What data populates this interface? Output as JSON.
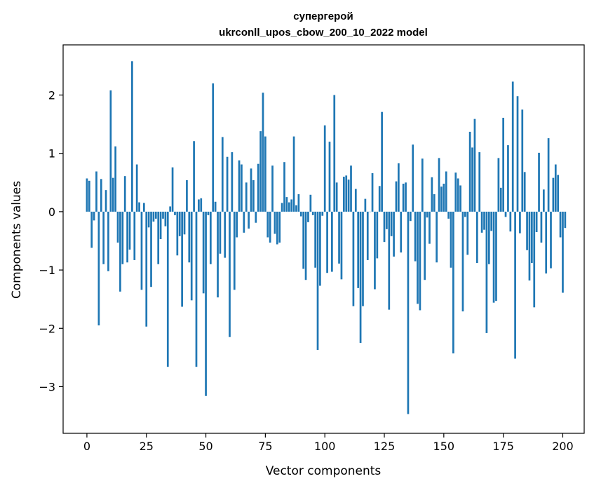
{
  "chart_data": {
    "type": "bar",
    "title_line1": "супергерой",
    "title_line2": "ukrconll_upos_cbow_200_10_2022 model",
    "xlabel": "Vector components",
    "ylabel": "Components values",
    "xlim": [
      -10,
      209
    ],
    "ylim": [
      -3.8,
      2.86
    ],
    "x_ticks": [
      0,
      25,
      50,
      75,
      100,
      125,
      150,
      175,
      200
    ],
    "x_tick_labels": [
      "0",
      "25",
      "50",
      "75",
      "100",
      "125",
      "150",
      "175",
      "200"
    ],
    "y_ticks": [
      2,
      1,
      0,
      -1,
      -2,
      -3
    ],
    "y_tick_labels": [
      "2",
      "1",
      "0",
      "−1",
      "−2",
      "−3"
    ],
    "bar_color": "#1f77b4",
    "values": [
      0.57,
      0.53,
      -0.62,
      -0.15,
      0.69,
      -1.95,
      0.56,
      -0.9,
      0.37,
      -1.02,
      2.08,
      0.58,
      1.12,
      -0.53,
      -1.37,
      -0.9,
      0.61,
      -0.87,
      -0.65,
      2.58,
      -0.83,
      0.81,
      0.16,
      -1.34,
      0.15,
      -1.97,
      -0.27,
      -1.29,
      -0.17,
      -0.12,
      -0.9,
      -0.47,
      -0.12,
      -0.25,
      -2.66,
      0.09,
      0.76,
      -0.06,
      -0.75,
      -0.42,
      -1.63,
      -0.39,
      0.54,
      -0.87,
      -1.52,
      1.21,
      -2.66,
      0.21,
      0.23,
      -1.4,
      -3.16,
      -0.06,
      -0.9,
      2.2,
      0.17,
      -1.47,
      -0.72,
      1.28,
      -0.79,
      0.94,
      -2.15,
      1.02,
      -1.34,
      -0.44,
      0.88,
      0.81,
      -0.36,
      0.5,
      -0.29,
      0.74,
      0.54,
      -0.19,
      0.82,
      1.38,
      2.04,
      1.29,
      -0.44,
      -0.53,
      0.79,
      -0.38,
      -0.56,
      -0.53,
      0.15,
      0.85,
      0.25,
      0.16,
      0.21,
      1.29,
      0.11,
      0.3,
      -0.08,
      -0.98,
      -1.17,
      -0.18,
      0.29,
      -0.06,
      -0.96,
      -2.37,
      -1.27,
      -0.07,
      1.48,
      -1.05,
      1.2,
      -1.03,
      2.0,
      0.5,
      -0.89,
      -1.16,
      0.6,
      0.62,
      0.55,
      0.79,
      -1.62,
      0.39,
      -1.31,
      -2.25,
      -1.62,
      0.22,
      -0.83,
      0.0,
      0.66,
      -1.33,
      -0.8,
      0.44,
      1.71,
      -0.52,
      -0.3,
      -1.68,
      -0.42,
      -0.77,
      0.52,
      0.83,
      -0.7,
      0.48,
      0.5,
      -3.47,
      -0.16,
      1.15,
      -0.85,
      -1.58,
      -1.69,
      0.91,
      -1.17,
      -0.1,
      -0.55,
      0.59,
      0.3,
      -0.87,
      0.92,
      0.43,
      0.48,
      0.69,
      -0.12,
      -0.96,
      -2.43,
      0.67,
      0.57,
      0.45,
      -1.71,
      -0.09,
      -0.74,
      1.37,
      1.1,
      1.59,
      -0.88,
      1.02,
      -0.36,
      -0.31,
      -2.08,
      -0.9,
      -0.33,
      -1.56,
      -1.53,
      0.92,
      0.41,
      1.61,
      -0.09,
      1.14,
      -0.34,
      2.23,
      -2.52,
      1.98,
      -0.37,
      1.75,
      0.68,
      -0.66,
      -1.18,
      -0.88,
      -1.64,
      -0.35,
      1.01,
      -0.53,
      0.38,
      -1.06,
      1.26,
      -0.97,
      0.58,
      0.81,
      0.63,
      -0.44,
      -1.39,
      -0.28
    ]
  }
}
